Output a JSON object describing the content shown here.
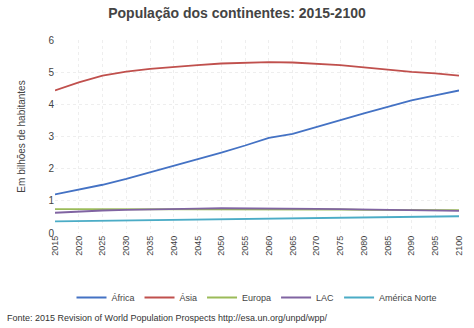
{
  "chart_data": {
    "type": "line",
    "title": "População dos continentes: 2015-2100",
    "ylabel": "Em bilhões de habitantes",
    "annotations": [
      "Fonte: 2015 Revision of World Population Prospects http://esa.un.org/unpd/wpp/"
    ],
    "x": [
      2015,
      2020,
      2025,
      2030,
      2035,
      2040,
      2045,
      2050,
      2055,
      2060,
      2065,
      2070,
      2075,
      2080,
      2085,
      2090,
      2095,
      2100
    ],
    "series": [
      {
        "name": "África",
        "color": "#4472C4",
        "values": [
          1.2,
          1.34,
          1.5,
          1.68,
          1.88,
          2.08,
          2.28,
          2.5,
          2.72,
          2.96,
          3.08,
          3.3,
          3.52,
          3.72,
          3.92,
          4.12,
          4.28,
          4.43
        ]
      },
      {
        "name": "Ásia",
        "color": "#C0504D",
        "values": [
          4.43,
          4.68,
          4.89,
          5.02,
          5.1,
          5.17,
          5.22,
          5.27,
          5.3,
          5.31,
          5.3,
          5.27,
          5.22,
          5.15,
          5.07,
          5.01,
          4.96,
          4.89
        ]
      },
      {
        "name": "Europa",
        "color": "#9BBB59",
        "values": [
          0.74,
          0.74,
          0.74,
          0.74,
          0.75,
          0.75,
          0.75,
          0.75,
          0.75,
          0.74,
          0.74,
          0.73,
          0.73,
          0.72,
          0.72,
          0.72,
          0.71,
          0.71
        ]
      },
      {
        "name": "LAC",
        "color": "#8064A2",
        "values": [
          0.63,
          0.67,
          0.7,
          0.72,
          0.74,
          0.75,
          0.76,
          0.77,
          0.77,
          0.76,
          0.76,
          0.75,
          0.74,
          0.73,
          0.72,
          0.71,
          0.7,
          0.69
        ]
      },
      {
        "name": "América Norte",
        "color": "#4BACC6",
        "values": [
          0.36,
          0.37,
          0.38,
          0.39,
          0.4,
          0.41,
          0.43,
          0.44,
          0.44,
          0.45,
          0.46,
          0.47,
          0.48,
          0.49,
          0.5,
          0.51,
          0.51,
          0.52
        ]
      }
    ],
    "xlim": [
      2015,
      2100
    ],
    "xticks": [
      2015,
      2020,
      2025,
      2030,
      2035,
      2040,
      2045,
      2050,
      2055,
      2060,
      2065,
      2070,
      2075,
      2080,
      2085,
      2090,
      2095,
      2100
    ],
    "ylim": [
      0,
      6
    ],
    "yticks": [
      0,
      1,
      2,
      3,
      4,
      5,
      6
    ],
    "grid": true,
    "legend": "bottom"
  }
}
